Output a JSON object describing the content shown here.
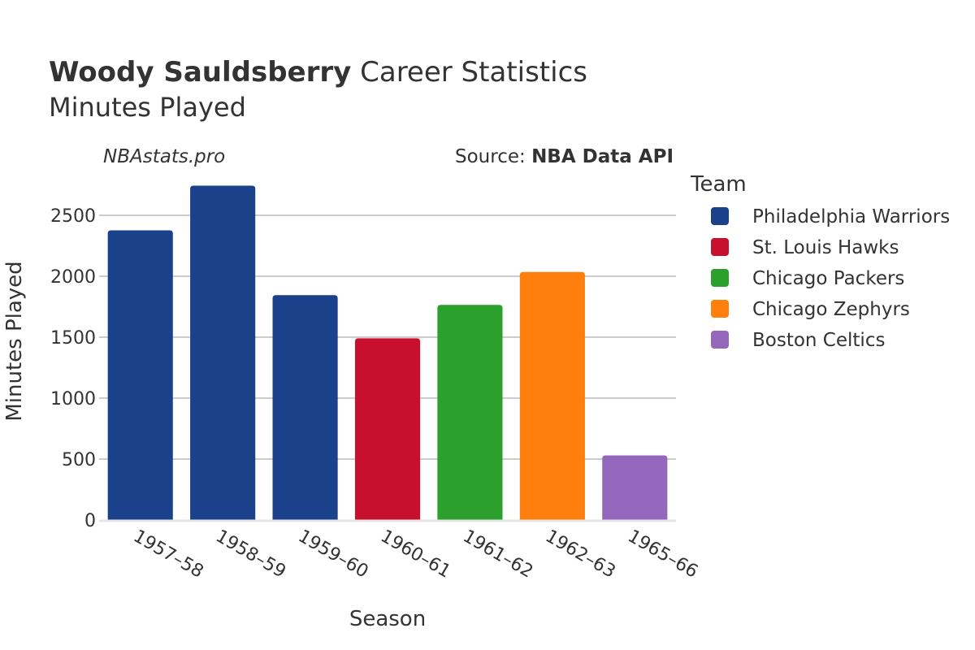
{
  "title": {
    "player": "Woody Sauldsberry",
    "suffix": "Career Statistics",
    "subtitle": "Minutes Played"
  },
  "credit": "NBAstats.pro",
  "source": {
    "prefix": "Source: ",
    "name": "NBA Data API"
  },
  "legend": {
    "title": "Team",
    "items": [
      {
        "label": "Philadelphia Warriors",
        "color": "#1b418a"
      },
      {
        "label": "St. Louis Hawks",
        "color": "#c8102e"
      },
      {
        "label": "Chicago Packers",
        "color": "#2ca02c"
      },
      {
        "label": "Chicago Zephyrs",
        "color": "#ff7f0e"
      },
      {
        "label": "Boston Celtics",
        "color": "#9467bd"
      }
    ]
  },
  "chart_data": {
    "type": "bar",
    "title": "Woody Sauldsberry Career Statistics — Minutes Played",
    "xlabel": "Season",
    "ylabel": "Minutes Played",
    "ylim": [
      0,
      2800
    ],
    "yticks": [
      0,
      500,
      1000,
      1500,
      2000,
      2500
    ],
    "grid": true,
    "legend_position": "right",
    "categories": [
      "1957–58",
      "1958–59",
      "1959–60",
      "1960–61",
      "1961–62",
      "1962–63",
      "1965–66"
    ],
    "values": [
      2377,
      2743,
      1845,
      1491,
      1765,
      2035,
      530
    ],
    "teams": [
      "Philadelphia Warriors",
      "Philadelphia Warriors",
      "Philadelphia Warriors",
      "St. Louis Hawks",
      "Chicago Packers",
      "Chicago Zephyrs",
      "Boston Celtics"
    ]
  }
}
